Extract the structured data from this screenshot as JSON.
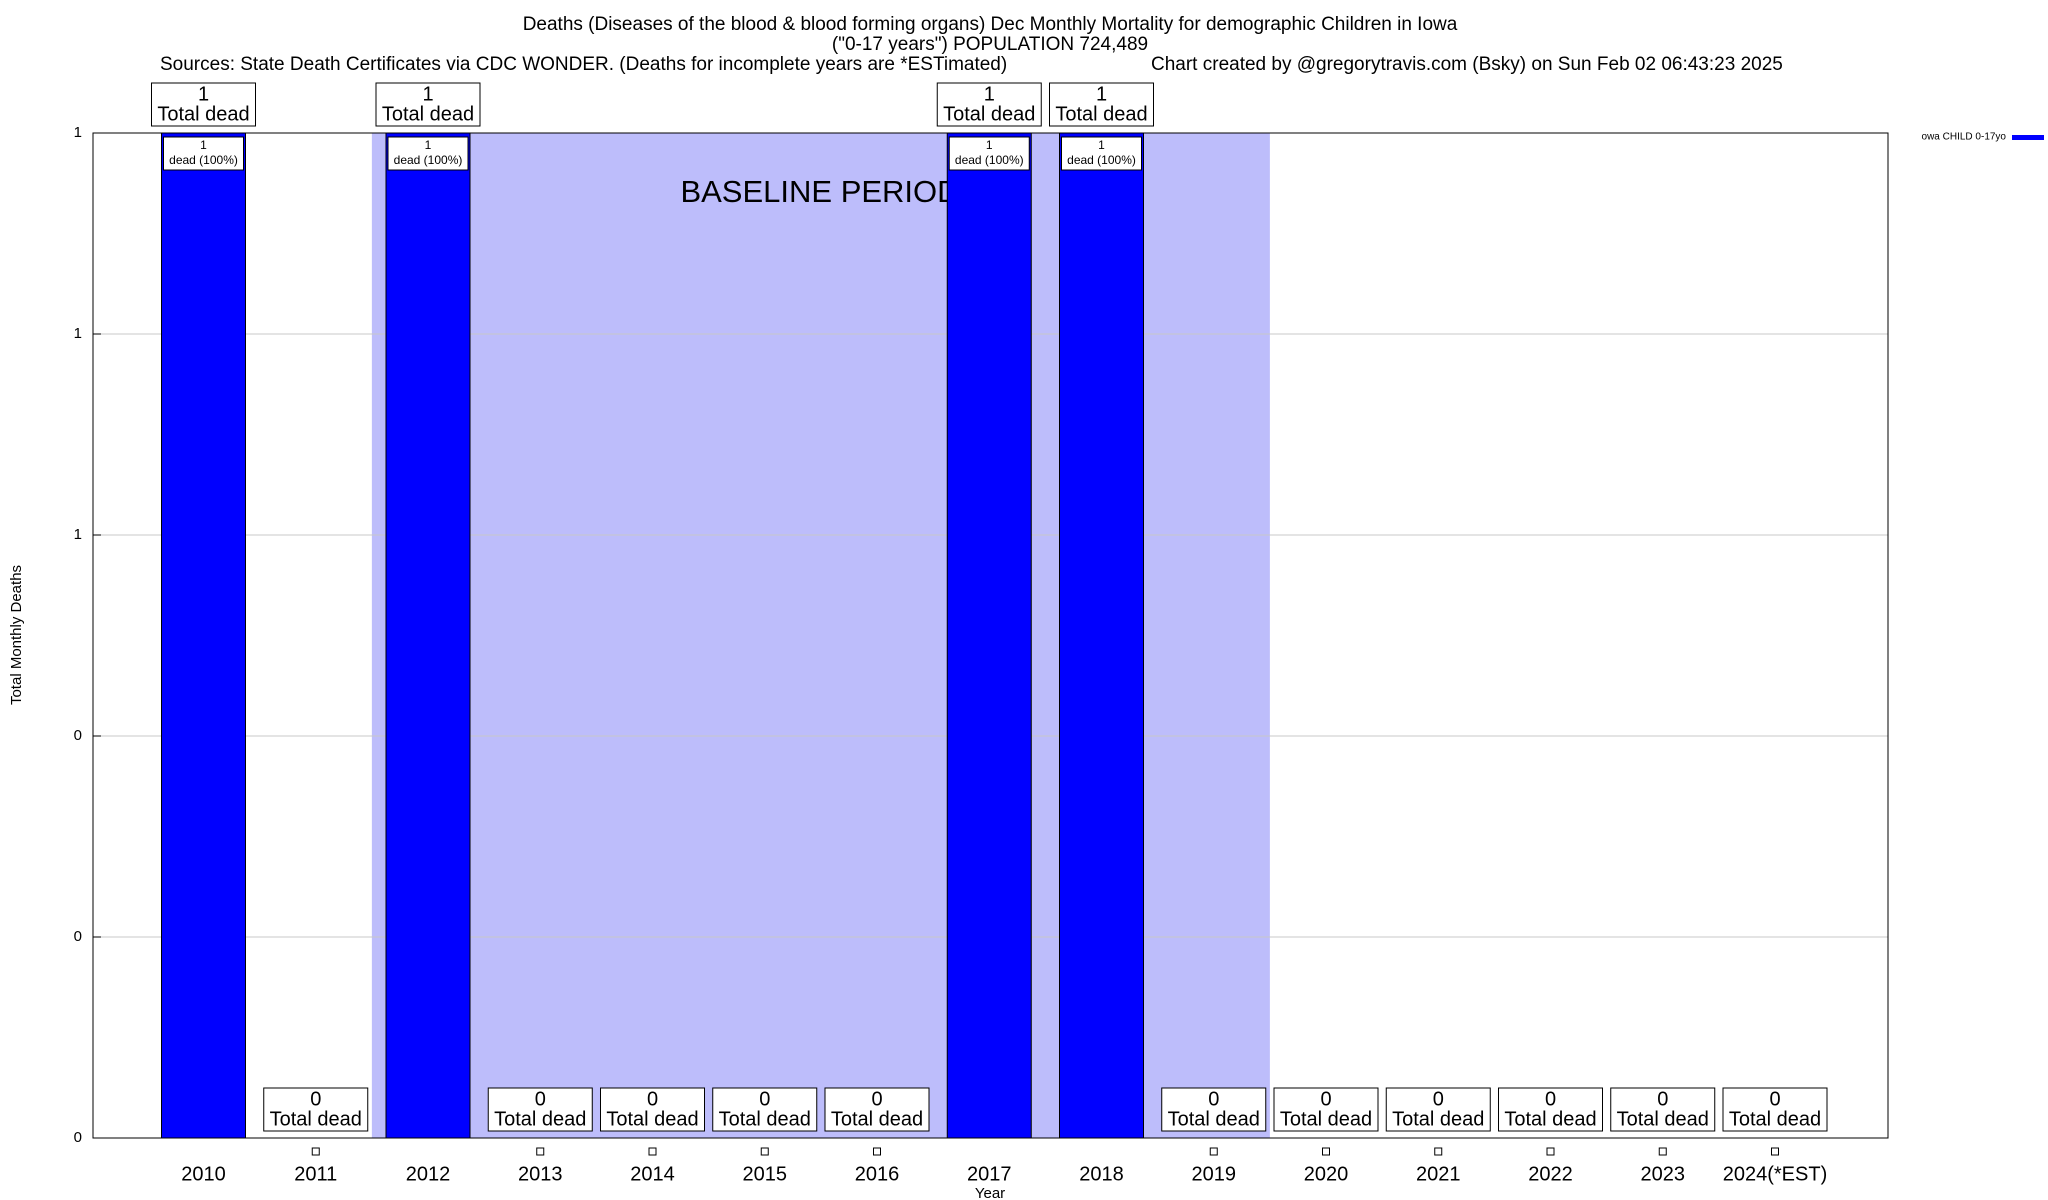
{
  "chart_data": {
    "type": "bar",
    "title": "Deaths (Diseases of the blood & blood forming organs) Dec Monthly Mortality for demographic Children in Iowa",
    "subtitle": "(\"0-17 years\") POPULATION 724,489",
    "source": "Sources: State Death Certificates via CDC WONDER. (Deaths for incomplete years are *ESTimated)",
    "credit": "Chart created by @gregorytravis.com (Bsky) on Sun Feb 02 06:43:23 2025",
    "x_label": "Year",
    "y_label": "Total Monthly Deaths",
    "categories": [
      "2010",
      "2011",
      "2012",
      "2013",
      "2014",
      "2015",
      "2016",
      "2017",
      "2018",
      "2019",
      "2020",
      "2021",
      "2022",
      "2023",
      "2024(*EST)"
    ],
    "series": [
      {
        "name": "owa CHILD 0-17yo",
        "color": "#0000ff",
        "values": [
          1,
          0,
          1,
          0,
          0,
          0,
          0,
          1,
          1,
          0,
          0,
          0,
          0,
          0,
          0
        ]
      }
    ],
    "total_label": "Total dead",
    "share_labels": [
      "dead (100%)",
      null,
      "dead (100%)",
      null,
      null,
      null,
      null,
      "dead (100%)",
      "dead (100%)",
      null,
      null,
      null,
      null,
      null,
      null
    ],
    "baseline": {
      "label": "BASELINE PERIOD",
      "start": "2012",
      "end": "2019",
      "color": "#bdbdfb"
    },
    "ylim": [
      0,
      1
    ],
    "yticks": [
      {
        "value": 0,
        "label": "0"
      },
      {
        "value": 0.2,
        "label": "0"
      },
      {
        "value": 0.4,
        "label": "0"
      },
      {
        "value": 0.6,
        "label": "1"
      },
      {
        "value": 0.8,
        "label": "1"
      },
      {
        "value": 1,
        "label": "1"
      }
    ],
    "grid": true,
    "legend": "top-right"
  }
}
